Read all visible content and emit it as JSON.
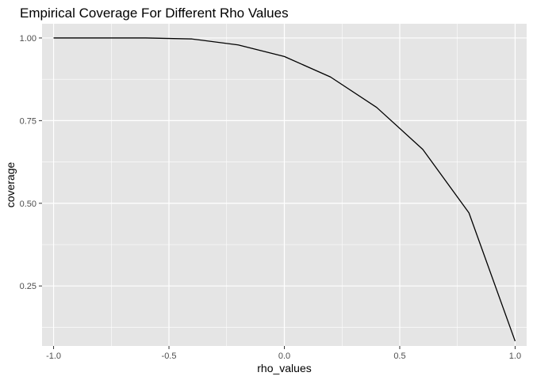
{
  "chart_data": {
    "type": "line",
    "title": "Empirical Coverage For Different Rho Values",
    "xlabel": "rho_values",
    "ylabel": "coverage",
    "xlim": [
      -1.05,
      1.05
    ],
    "ylim": [
      0.0685,
      1.043
    ],
    "x_ticks": [
      -1.0,
      -0.5,
      0.0,
      0.5,
      1.0
    ],
    "x_tick_labels": [
      "-1.0",
      "-0.5",
      "0.0",
      "0.5",
      "1.0"
    ],
    "y_ticks": [
      0.25,
      0.5,
      0.75,
      1.0
    ],
    "y_tick_labels": [
      "0.25",
      "0.50",
      "0.75",
      "1.00"
    ],
    "grid": true,
    "panel_background": "#e5e5e5",
    "grid_color": "#ffffff",
    "line_color": "#000000",
    "series": [
      {
        "x": [
          -1.0,
          -0.8,
          -0.6,
          -0.4,
          -0.2,
          0.0,
          0.2,
          0.4,
          0.6,
          0.8,
          1.0
        ],
        "values": [
          1.0,
          1.0,
          1.0,
          0.997,
          0.979,
          0.944,
          0.882,
          0.79,
          0.663,
          0.471,
          0.083
        ]
      }
    ]
  }
}
